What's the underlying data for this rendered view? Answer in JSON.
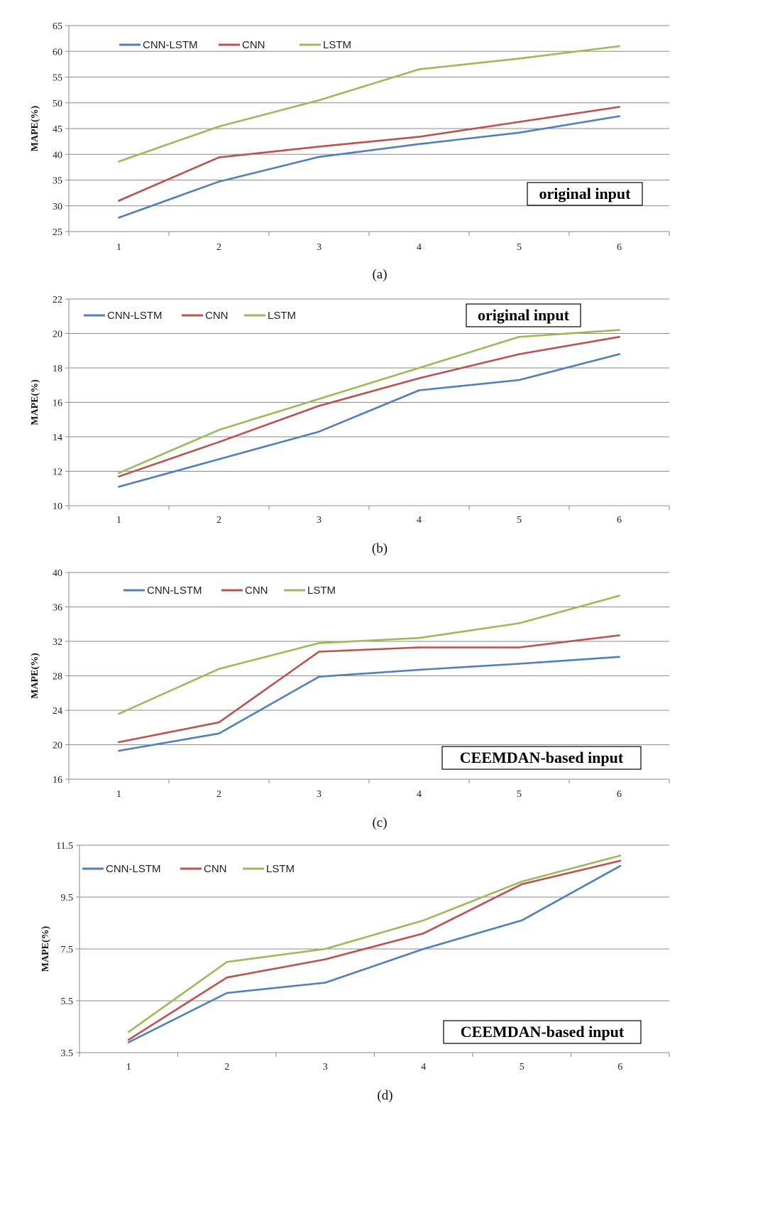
{
  "chart_data": [
    {
      "type": "line",
      "panel": "(a)",
      "caption": "(a)",
      "annotation": "original input",
      "ylabel": "MAPE(%)",
      "xlabel": "",
      "categories": [
        "1",
        "2",
        "3",
        "4",
        "5",
        "6"
      ],
      "ylim": [
        25,
        65
      ],
      "yticks": [
        "25",
        "30",
        "35",
        "40",
        "45",
        "50",
        "55",
        "60",
        "65"
      ],
      "grid": true,
      "legend": "top-left",
      "series": [
        {
          "name": "CNN-LSTM",
          "color": "#4f7fbd",
          "values": [
            27.7,
            34.7,
            39.5,
            42.0,
            44.2,
            47.4
          ]
        },
        {
          "name": "CNN",
          "color": "#c0504d",
          "values": [
            31.0,
            39.4,
            41.5,
            43.4,
            46.3,
            49.2
          ]
        },
        {
          "name": "LSTM",
          "color": "#9bbb59",
          "values": [
            38.6,
            45.4,
            50.5,
            56.5,
            58.6,
            61.0
          ]
        }
      ]
    },
    {
      "type": "line",
      "panel": "(b)",
      "caption": "(b)",
      "annotation": "original input",
      "ylabel": "MAPE(%)",
      "xlabel": "",
      "categories": [
        "1",
        "2",
        "3",
        "4",
        "5",
        "6"
      ],
      "ylim": [
        10,
        22
      ],
      "yticks": [
        "10",
        "12",
        "14",
        "16",
        "18",
        "20",
        "22"
      ],
      "grid": true,
      "legend": "top-left",
      "series": [
        {
          "name": "CNN-LSTM",
          "color": "#4f7fbd",
          "values": [
            11.1,
            12.7,
            14.3,
            16.7,
            17.3,
            18.8
          ]
        },
        {
          "name": "CNN",
          "color": "#c0504d",
          "values": [
            11.7,
            13.7,
            15.8,
            17.4,
            18.8,
            19.8
          ]
        },
        {
          "name": "LSTM",
          "color": "#9bbb59",
          "values": [
            11.9,
            14.4,
            16.2,
            18.0,
            19.8,
            20.2
          ]
        }
      ]
    },
    {
      "type": "line",
      "panel": "(c)",
      "caption": "(c)",
      "annotation": "CEEMDAN-based input",
      "ylabel": "MAPE(%)",
      "xlabel": "",
      "categories": [
        "1",
        "2",
        "3",
        "4",
        "5",
        "6"
      ],
      "ylim": [
        16,
        40
      ],
      "yticks": [
        "16",
        "20",
        "24",
        "28",
        "32",
        "36",
        "40"
      ],
      "grid": true,
      "legend": "top-left",
      "series": [
        {
          "name": "CNN-LSTM",
          "color": "#4f7fbd",
          "values": [
            19.3,
            21.3,
            27.9,
            28.7,
            29.4,
            30.2
          ]
        },
        {
          "name": "CNN",
          "color": "#c0504d",
          "values": [
            20.3,
            22.6,
            30.8,
            31.3,
            31.3,
            32.7
          ]
        },
        {
          "name": "LSTM",
          "color": "#9bbb59",
          "values": [
            23.6,
            28.8,
            31.8,
            32.4,
            34.1,
            37.3
          ]
        }
      ]
    },
    {
      "type": "line",
      "panel": "(d)",
      "caption": "(d)",
      "annotation": "CEEMDAN-based input",
      "ylabel": "MAPE(%)",
      "xlabel": "",
      "categories": [
        "1",
        "2",
        "3",
        "4",
        "5",
        "6"
      ],
      "ylim": [
        3.5,
        11.5
      ],
      "yticks": [
        "3.5",
        "5.5",
        "7.5",
        "9.5",
        "11.5"
      ],
      "grid": true,
      "legend": "top-left",
      "series": [
        {
          "name": "CNN-LSTM",
          "color": "#4f7fbd",
          "values": [
            3.9,
            5.8,
            6.2,
            7.5,
            8.6,
            10.7
          ]
        },
        {
          "name": "CNN",
          "color": "#c0504d",
          "values": [
            4.0,
            6.4,
            7.1,
            8.1,
            10.0,
            10.9
          ]
        },
        {
          "name": "LSTM",
          "color": "#9bbb59",
          "values": [
            4.3,
            7.0,
            7.5,
            8.6,
            10.1,
            11.1
          ]
        }
      ]
    }
  ]
}
